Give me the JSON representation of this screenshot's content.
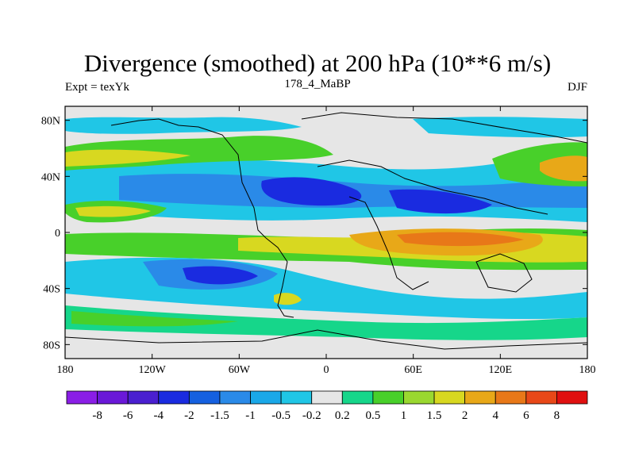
{
  "chart_data": {
    "type": "heatmap",
    "title": "Divergence (smoothed) at 200 hPa (10**6 m/s)",
    "subtitle_left": "Expt = texYk",
    "subtitle_center": "178_4_MaBP",
    "subtitle_right": "DJF",
    "x_ticks": [
      "180",
      "120W",
      "60W",
      "0",
      "60E",
      "120E",
      "180"
    ],
    "y_ticks": [
      "80N",
      "40N",
      "0",
      "40S",
      "80S"
    ],
    "xlim": [
      -180,
      180
    ],
    "ylim": [
      -90,
      90
    ],
    "colorbar": {
      "labels": [
        "-8",
        "-6",
        "-4",
        "-2",
        "-1.5",
        "-1",
        "-0.5",
        "-0.2",
        "0.2",
        "0.5",
        "1",
        "1.5",
        "2",
        "4",
        "6",
        "8"
      ],
      "colors": [
        "#8a1ee6",
        "#6a18d8",
        "#4a1fd0",
        "#1a2be0",
        "#1560e0",
        "#2a8ae8",
        "#1aa8e8",
        "#20c6e6",
        "#e6e6e6",
        "#16d68a",
        "#48d02a",
        "#9ad830",
        "#d8d820",
        "#e8a818",
        "#e87818",
        "#e84818",
        "#e01010"
      ]
    }
  }
}
